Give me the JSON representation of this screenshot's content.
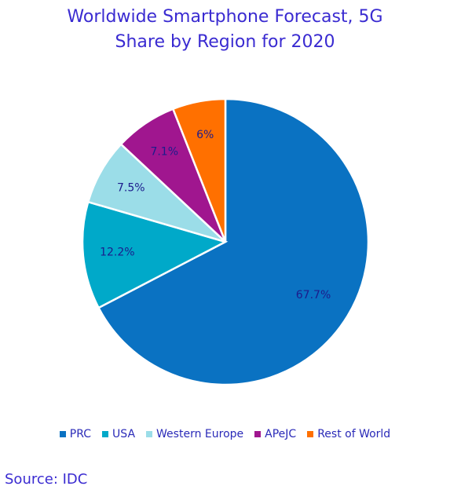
{
  "chart_data": {
    "type": "pie",
    "title": "Worldwide Smartphone Forecast, 5G Share by Region for 2020",
    "categories": [
      "PRC",
      "USA",
      "Western Europe",
      "APeJC",
      "Rest of World"
    ],
    "values": [
      67.7,
      12.2,
      7.5,
      7.1,
      6
    ],
    "value_labels": [
      "67.7%",
      "12.2%",
      "7.5%",
      "7.1%",
      "6%"
    ],
    "colors": [
      "#0a72c2",
      "#00a9c9",
      "#9bdde8",
      "#a0168f",
      "#ff7000"
    ],
    "legend": "bottom",
    "source": "Source: IDC"
  }
}
